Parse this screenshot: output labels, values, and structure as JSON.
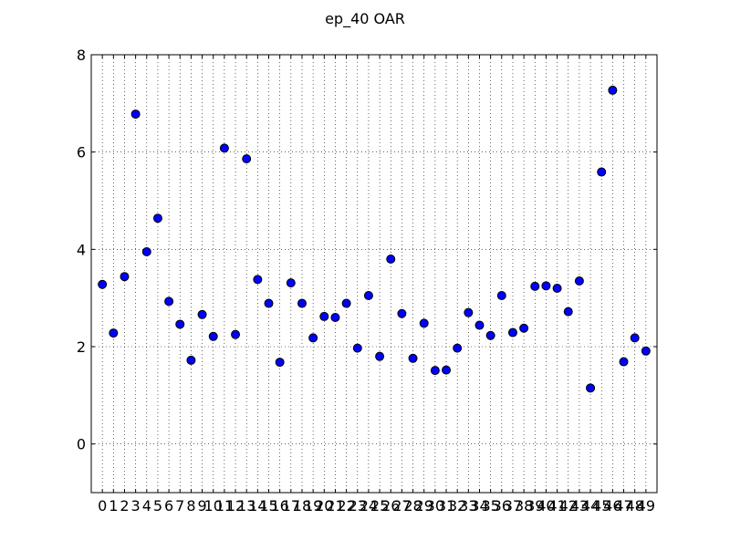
{
  "chart_data": {
    "type": "scatter",
    "title": "ep_40 OAR",
    "xlabel": "",
    "ylabel": "",
    "xlim": [
      -1,
      50
    ],
    "ylim": [
      -1,
      8
    ],
    "grid": true,
    "x_ticks": [
      "0",
      "1",
      "2",
      "3",
      "4",
      "5",
      "6",
      "7",
      "8",
      "9",
      "10",
      "11",
      "12",
      "13",
      "14",
      "15",
      "16",
      "17",
      "18",
      "19",
      "20",
      "21",
      "22",
      "23",
      "24",
      "25",
      "26",
      "27",
      "28",
      "29",
      "30",
      "31",
      "32",
      "33",
      "34",
      "35",
      "36",
      "37",
      "38",
      "39",
      "40",
      "41",
      "42",
      "43",
      "44",
      "45",
      "46",
      "47",
      "48",
      "49"
    ],
    "y_ticks": [
      "0",
      "2",
      "4",
      "6",
      "8"
    ],
    "y_tick_values": [
      0,
      2,
      4,
      6,
      8
    ],
    "marker_color": "#0000ff",
    "series": [
      {
        "x": [
          0,
          1,
          2,
          3,
          4,
          5,
          6,
          7,
          8,
          9,
          10,
          11,
          12,
          13,
          14,
          15,
          16,
          17,
          18,
          19,
          20,
          21,
          22,
          23,
          24,
          25,
          26,
          27,
          28,
          29,
          30,
          31,
          32,
          33,
          34,
          35,
          36,
          37,
          38,
          39,
          40,
          41,
          42,
          43,
          44,
          45,
          46,
          47,
          48,
          49
        ],
        "values": [
          3.28,
          2.28,
          3.44,
          6.78,
          3.95,
          4.64,
          2.93,
          2.46,
          1.72,
          2.66,
          2.21,
          6.08,
          2.25,
          5.86,
          3.38,
          2.89,
          1.68,
          3.31,
          2.89,
          2.18,
          2.62,
          2.6,
          2.89,
          1.97,
          3.05,
          1.8,
          3.8,
          2.68,
          1.76,
          2.48,
          1.51,
          1.52,
          1.97,
          2.7,
          2.44,
          2.23,
          3.05,
          2.29,
          2.38,
          3.24,
          3.25,
          3.2,
          2.72,
          3.35,
          1.15,
          5.59,
          7.27,
          1.69,
          2.18,
          1.91
        ]
      }
    ]
  }
}
